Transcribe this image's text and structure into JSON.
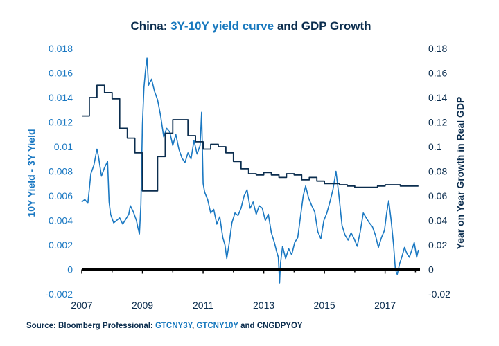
{
  "chart_data": {
    "type": "line",
    "title_parts": [
      {
        "text": "China: ",
        "color": "#0b2d4e"
      },
      {
        "text": "3Y-10Y yield curve",
        "color": "#1778be"
      },
      {
        "text": " and GDP Growth",
        "color": "#0b2d4e"
      }
    ],
    "ylabel_left": "10Y Yield - 3Y Yield",
    "ylabel_right": "Year on Year Growth in Real GDP",
    "x_ticks": [
      "2007",
      "2009",
      "2011",
      "2013",
      "2015",
      "2017"
    ],
    "y_left_ticks": [
      "0.018",
      "0.016",
      "0.014",
      "0.012",
      "0.01",
      "0.008",
      "0.006",
      "0.004",
      "0.002",
      "0",
      "-0.002"
    ],
    "y_right_ticks": [
      "0.18",
      "0.16",
      "0.14",
      "0.12",
      "0.1",
      "0.08",
      "0.06",
      "0.04",
      "0.02",
      "0",
      "-0.02"
    ],
    "xlim": [
      2007,
      2018.15
    ],
    "ylim_left": [
      -0.002,
      0.018
    ],
    "ylim_right": [
      -0.02,
      0.18
    ],
    "grid": false,
    "series": [
      {
        "name": "GTCNY10Y - GTCNY3Y",
        "axis": "left",
        "color": "#1a78c2",
        "points": [
          [
            2007.0,
            0.0055
          ],
          [
            2007.1,
            0.0057
          ],
          [
            2007.2,
            0.0054
          ],
          [
            2007.3,
            0.0078
          ],
          [
            2007.4,
            0.0085
          ],
          [
            2007.5,
            0.0098
          ],
          [
            2007.55,
            0.0092
          ],
          [
            2007.65,
            0.0076
          ],
          [
            2007.75,
            0.0083
          ],
          [
            2007.85,
            0.0088
          ],
          [
            2007.9,
            0.0055
          ],
          [
            2007.95,
            0.0045
          ],
          [
            2008.05,
            0.0038
          ],
          [
            2008.15,
            0.004
          ],
          [
            2008.25,
            0.0042
          ],
          [
            2008.35,
            0.0037
          ],
          [
            2008.45,
            0.0041
          ],
          [
            2008.55,
            0.0045
          ],
          [
            2008.6,
            0.0052
          ],
          [
            2008.7,
            0.0047
          ],
          [
            2008.8,
            0.004
          ],
          [
            2008.85,
            0.0034
          ],
          [
            2008.9,
            0.0029
          ],
          [
            2008.95,
            0.0053
          ],
          [
            2009.0,
            0.0118
          ],
          [
            2009.05,
            0.0148
          ],
          [
            2009.1,
            0.0162
          ],
          [
            2009.15,
            0.0172
          ],
          [
            2009.2,
            0.015
          ],
          [
            2009.3,
            0.0155
          ],
          [
            2009.4,
            0.0145
          ],
          [
            2009.5,
            0.0138
          ],
          [
            2009.6,
            0.0125
          ],
          [
            2009.7,
            0.0108
          ],
          [
            2009.8,
            0.0115
          ],
          [
            2009.9,
            0.0112
          ],
          [
            2010.0,
            0.0101
          ],
          [
            2010.1,
            0.011
          ],
          [
            2010.2,
            0.0098
          ],
          [
            2010.3,
            0.0091
          ],
          [
            2010.4,
            0.0087
          ],
          [
            2010.5,
            0.0095
          ],
          [
            2010.6,
            0.009
          ],
          [
            2010.7,
            0.0105
          ],
          [
            2010.8,
            0.0094
          ],
          [
            2010.9,
            0.0101
          ],
          [
            2010.95,
            0.0128
          ],
          [
            2011.0,
            0.007
          ],
          [
            2011.05,
            0.0063
          ],
          [
            2011.15,
            0.0057
          ],
          [
            2011.25,
            0.0046
          ],
          [
            2011.35,
            0.0049
          ],
          [
            2011.45,
            0.0037
          ],
          [
            2011.55,
            0.0043
          ],
          [
            2011.65,
            0.0026
          ],
          [
            2011.72,
            0.002
          ],
          [
            2011.78,
            0.0009
          ],
          [
            2011.85,
            0.002
          ],
          [
            2011.95,
            0.0038
          ],
          [
            2012.05,
            0.0046
          ],
          [
            2012.15,
            0.0044
          ],
          [
            2012.25,
            0.005
          ],
          [
            2012.35,
            0.006
          ],
          [
            2012.45,
            0.0065
          ],
          [
            2012.55,
            0.005
          ],
          [
            2012.65,
            0.0055
          ],
          [
            2012.75,
            0.0045
          ],
          [
            2012.85,
            0.0052
          ],
          [
            2012.95,
            0.005
          ],
          [
            2013.05,
            0.004
          ],
          [
            2013.15,
            0.0045
          ],
          [
            2013.25,
            0.003
          ],
          [
            2013.35,
            0.0022
          ],
          [
            2013.42,
            0.0015
          ],
          [
            2013.48,
            0.001
          ],
          [
            2013.52,
            -0.0011
          ],
          [
            2013.55,
            0.0005
          ],
          [
            2013.62,
            0.0019
          ],
          [
            2013.72,
            0.0009
          ],
          [
            2013.82,
            0.0017
          ],
          [
            2013.92,
            0.0012
          ],
          [
            2014.02,
            0.0022
          ],
          [
            2014.12,
            0.0026
          ],
          [
            2014.22,
            0.0045
          ],
          [
            2014.3,
            0.006
          ],
          [
            2014.38,
            0.0068
          ],
          [
            2014.48,
            0.0058
          ],
          [
            2014.58,
            0.0052
          ],
          [
            2014.68,
            0.0047
          ],
          [
            2014.78,
            0.0031
          ],
          [
            2014.88,
            0.0025
          ],
          [
            2014.98,
            0.004
          ],
          [
            2015.08,
            0.0046
          ],
          [
            2015.18,
            0.0055
          ],
          [
            2015.28,
            0.0065
          ],
          [
            2015.38,
            0.008
          ],
          [
            2015.48,
            0.006
          ],
          [
            2015.58,
            0.0036
          ],
          [
            2015.68,
            0.0028
          ],
          [
            2015.78,
            0.0024
          ],
          [
            2015.88,
            0.003
          ],
          [
            2015.98,
            0.0025
          ],
          [
            2016.08,
            0.0019
          ],
          [
            2016.18,
            0.0031
          ],
          [
            2016.28,
            0.0046
          ],
          [
            2016.38,
            0.0042
          ],
          [
            2016.48,
            0.0038
          ],
          [
            2016.58,
            0.0035
          ],
          [
            2016.68,
            0.0028
          ],
          [
            2016.78,
            0.0018
          ],
          [
            2016.88,
            0.0026
          ],
          [
            2016.98,
            0.0032
          ],
          [
            2017.05,
            0.0046
          ],
          [
            2017.12,
            0.0056
          ],
          [
            2017.2,
            0.004
          ],
          [
            2017.28,
            0.002
          ],
          [
            2017.34,
            0.0
          ],
          [
            2017.4,
            -0.0004
          ],
          [
            2017.48,
            0.0005
          ],
          [
            2017.56,
            0.0011
          ],
          [
            2017.64,
            0.0018
          ],
          [
            2017.72,
            0.0013
          ],
          [
            2017.8,
            0.001
          ],
          [
            2017.88,
            0.0016
          ],
          [
            2017.96,
            0.0022
          ],
          [
            2018.04,
            0.001
          ],
          [
            2018.1,
            0.0016
          ]
        ]
      },
      {
        "name": "CNGDPYOY",
        "axis": "right",
        "color": "#0b2d4e",
        "step": true,
        "points": [
          [
            2007.0,
            0.125
          ],
          [
            2007.25,
            0.14
          ],
          [
            2007.5,
            0.15
          ],
          [
            2007.75,
            0.144
          ],
          [
            2008.0,
            0.139
          ],
          [
            2008.25,
            0.115
          ],
          [
            2008.5,
            0.107
          ],
          [
            2008.75,
            0.095
          ],
          [
            2009.0,
            0.064
          ],
          [
            2009.25,
            0.064
          ],
          [
            2009.5,
            0.092
          ],
          [
            2009.75,
            0.111
          ],
          [
            2010.0,
            0.122
          ],
          [
            2010.25,
            0.122
          ],
          [
            2010.5,
            0.109
          ],
          [
            2010.75,
            0.104
          ],
          [
            2011.0,
            0.098
          ],
          [
            2011.25,
            0.102
          ],
          [
            2011.5,
            0.1
          ],
          [
            2011.75,
            0.095
          ],
          [
            2012.0,
            0.088
          ],
          [
            2012.25,
            0.082
          ],
          [
            2012.5,
            0.078
          ],
          [
            2012.75,
            0.077
          ],
          [
            2013.0,
            0.079
          ],
          [
            2013.25,
            0.077
          ],
          [
            2013.5,
            0.075
          ],
          [
            2013.75,
            0.078
          ],
          [
            2014.0,
            0.077
          ],
          [
            2014.25,
            0.073
          ],
          [
            2014.5,
            0.075
          ],
          [
            2014.75,
            0.072
          ],
          [
            2015.0,
            0.07
          ],
          [
            2015.25,
            0.07
          ],
          [
            2015.5,
            0.069
          ],
          [
            2015.75,
            0.068
          ],
          [
            2016.0,
            0.067
          ],
          [
            2016.25,
            0.067
          ],
          [
            2016.5,
            0.067
          ],
          [
            2016.75,
            0.068
          ],
          [
            2017.0,
            0.069
          ],
          [
            2017.25,
            0.069
          ],
          [
            2017.5,
            0.068
          ],
          [
            2017.75,
            0.068
          ],
          [
            2018.1,
            0.068
          ]
        ]
      }
    ],
    "zero_line": {
      "axis": "left",
      "value": 0,
      "color": "#000000"
    }
  },
  "source": {
    "prefix": "Source: Bloomberg Professional: ",
    "link1": "GTCNY3Y",
    "sep1": ", ",
    "link2": "GTCNY10Y",
    "suffix": " and CNGDPYOY"
  }
}
